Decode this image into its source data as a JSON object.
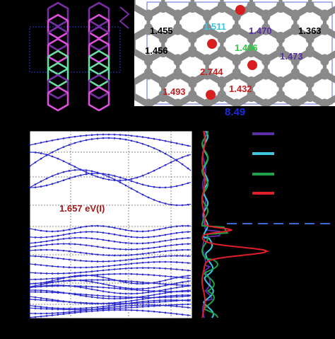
{
  "structure": {
    "bond_labels": [
      {
        "text": "1.455",
        "color": "#000000"
      },
      {
        "text": "1.511",
        "color": "#3fc6e0"
      },
      {
        "text": "1.470",
        "color": "#5a2ea6"
      },
      {
        "text": "1.363",
        "color": "#000000"
      },
      {
        "text": "1.456",
        "color": "#000000"
      },
      {
        "text": "1.496",
        "color": "#2ecc40"
      },
      {
        "text": "1.473",
        "color": "#5a2ea6"
      },
      {
        "text": "2.744",
        "color": "#c81e1e"
      },
      {
        "text": "1.493",
        "color": "#c81e1e"
      },
      {
        "text": "1.432",
        "color": "#c81e1e"
      }
    ],
    "lattice_label": "8.49"
  },
  "chart_data": [
    {
      "type": "line",
      "name": "band-structure",
      "annotation": "1.657 eV(I)",
      "line_color": "#2a2ad0"
    },
    {
      "type": "line",
      "name": "pdos",
      "series": [
        {
          "color": "#5a2ea6"
        },
        {
          "color": "#3fc6e0"
        },
        {
          "color": "#1fa24a"
        },
        {
          "color": "#e01e2a"
        }
      ],
      "fermi_line_color": "#3a6ad6"
    }
  ]
}
